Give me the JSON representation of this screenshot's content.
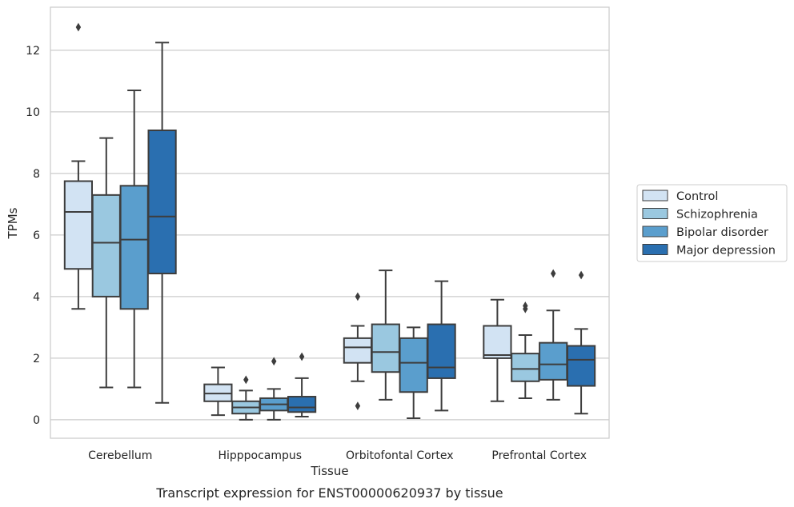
{
  "chart_data": {
    "type": "box",
    "title": "Transcript expression for ENST00000620937 by tissue",
    "xlabel": "Tissue",
    "ylabel": "TPMs",
    "ylim": [
      -0.6,
      13.4
    ],
    "yticks": [
      0,
      2,
      4,
      6,
      8,
      10,
      12
    ],
    "grid": "horizontal",
    "legend_position": "right",
    "categories": [
      "Cerebellum",
      "Hipppocampus",
      "Orbitofontal Cortex",
      "Prefrontal Cortex"
    ],
    "series": [
      {
        "name": "Control",
        "color": "#d2e3f3",
        "boxes": [
          {
            "whisker_low": 3.6,
            "q1": 4.9,
            "median": 6.75,
            "q3": 7.75,
            "whisker_high": 8.4,
            "outliers": [
              12.75
            ]
          },
          {
            "whisker_low": 0.15,
            "q1": 0.6,
            "median": 0.85,
            "q3": 1.15,
            "whisker_high": 1.7,
            "outliers": []
          },
          {
            "whisker_low": 1.25,
            "q1": 1.85,
            "median": 2.35,
            "q3": 2.65,
            "whisker_high": 3.05,
            "outliers": [
              4.0,
              0.45
            ]
          },
          {
            "whisker_low": 0.6,
            "q1": 2.0,
            "median": 2.1,
            "q3": 3.05,
            "whisker_high": 3.9,
            "outliers": []
          }
        ]
      },
      {
        "name": "Schizophrenia",
        "color": "#9ac8e0",
        "boxes": [
          {
            "whisker_low": 1.05,
            "q1": 4.0,
            "median": 5.75,
            "q3": 7.3,
            "whisker_high": 9.15,
            "outliers": []
          },
          {
            "whisker_low": 0.0,
            "q1": 0.2,
            "median": 0.4,
            "q3": 0.6,
            "whisker_high": 0.95,
            "outliers": [
              1.3
            ]
          },
          {
            "whisker_low": 0.65,
            "q1": 1.55,
            "median": 2.2,
            "q3": 3.1,
            "whisker_high": 4.85,
            "outliers": []
          },
          {
            "whisker_low": 0.7,
            "q1": 1.25,
            "median": 1.65,
            "q3": 2.15,
            "whisker_high": 2.75,
            "outliers": [
              3.6,
              3.7
            ]
          }
        ]
      },
      {
        "name": "Bipolar disorder",
        "color": "#5a9ecd",
        "boxes": [
          {
            "whisker_low": 1.05,
            "q1": 3.6,
            "median": 5.85,
            "q3": 7.6,
            "whisker_high": 10.7,
            "outliers": []
          },
          {
            "whisker_low": 0.0,
            "q1": 0.3,
            "median": 0.5,
            "q3": 0.7,
            "whisker_high": 1.0,
            "outliers": [
              1.9
            ]
          },
          {
            "whisker_low": 0.05,
            "q1": 0.9,
            "median": 1.85,
            "q3": 2.65,
            "whisker_high": 3.0,
            "outliers": []
          },
          {
            "whisker_low": 0.65,
            "q1": 1.3,
            "median": 1.8,
            "q3": 2.5,
            "whisker_high": 3.55,
            "outliers": [
              4.75
            ]
          }
        ]
      },
      {
        "name": "Major depression",
        "color": "#2a6fb0",
        "boxes": [
          {
            "whisker_low": 0.55,
            "q1": 4.75,
            "median": 6.6,
            "q3": 9.4,
            "whisker_high": 12.25,
            "outliers": []
          },
          {
            "whisker_low": 0.1,
            "q1": 0.25,
            "median": 0.4,
            "q3": 0.75,
            "whisker_high": 1.35,
            "outliers": [
              2.05
            ]
          },
          {
            "whisker_low": 0.3,
            "q1": 1.35,
            "median": 1.7,
            "q3": 3.1,
            "whisker_high": 4.5,
            "outliers": []
          },
          {
            "whisker_low": 0.2,
            "q1": 1.1,
            "median": 1.95,
            "q3": 2.4,
            "whisker_high": 2.95,
            "outliers": [
              4.7
            ]
          }
        ]
      }
    ]
  }
}
